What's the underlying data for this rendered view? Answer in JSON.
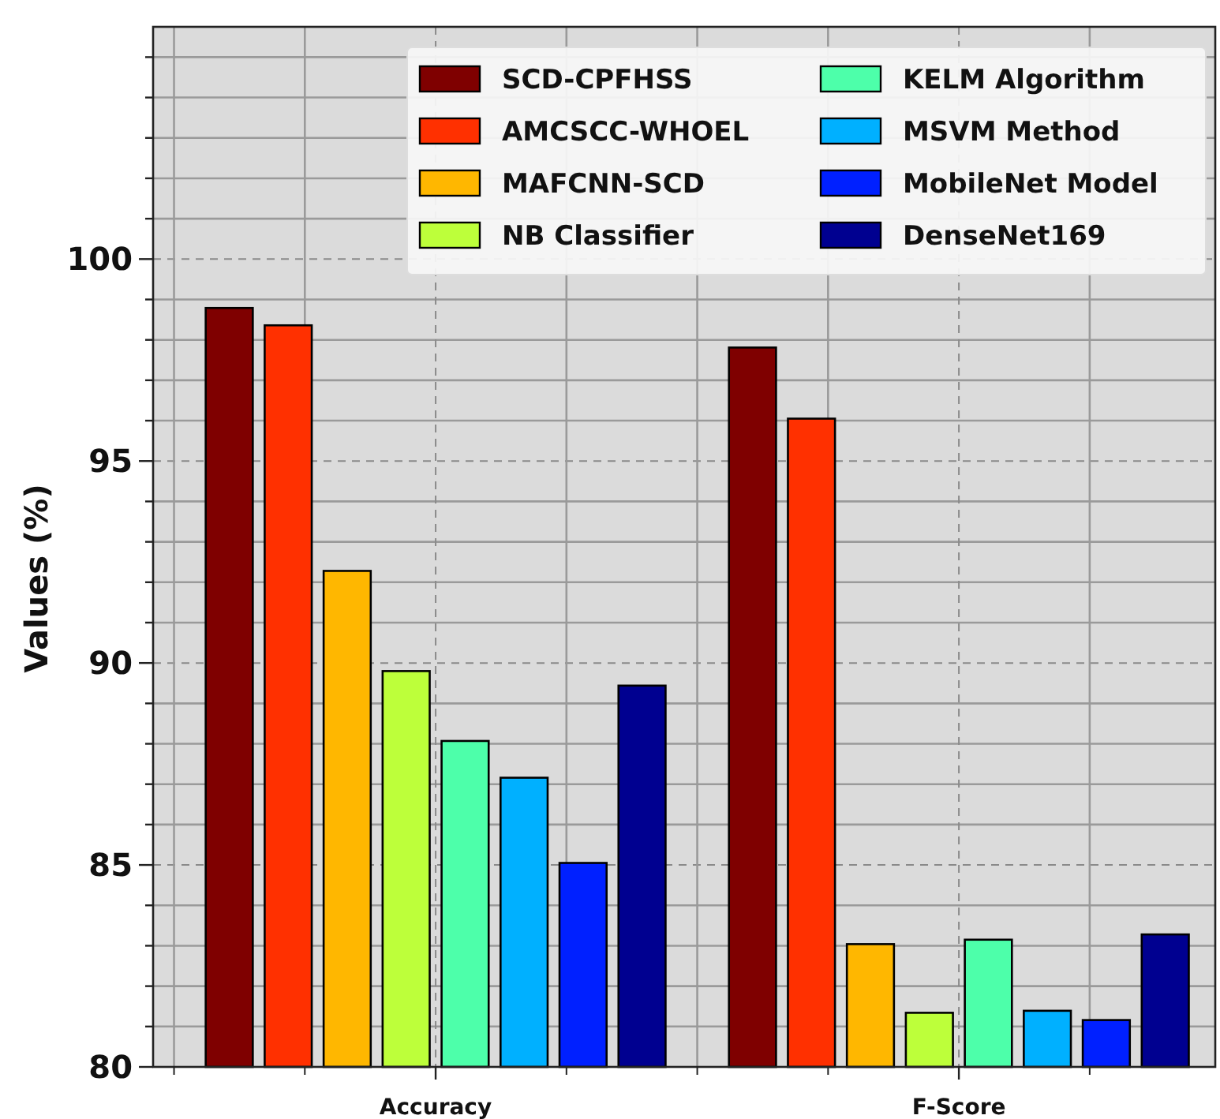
{
  "chart_data": {
    "type": "bar",
    "ylabel": "Values (%)",
    "categories": [
      "Accuracy",
      "F-Score"
    ],
    "series": [
      {
        "name": "SCD-CPFHSS",
        "color": "#7f0000",
        "values": [
          98.79,
          97.81
        ]
      },
      {
        "name": "AMCSCC-WHOEL",
        "color": "#ff3000",
        "values": [
          98.36,
          96.05
        ]
      },
      {
        "name": "MAFCNN-SCD",
        "color": "#ffb700",
        "values": [
          92.28,
          83.04
        ]
      },
      {
        "name": "NB Classifier",
        "color": "#bdff3a",
        "values": [
          89.8,
          81.34
        ]
      },
      {
        "name": "KELM Algorithm",
        "color": "#4dffaa",
        "values": [
          88.07,
          83.15
        ]
      },
      {
        "name": "MSVM Method",
        "color": "#00b0ff",
        "values": [
          87.16,
          81.39
        ]
      },
      {
        "name": "MobileNet Model",
        "color": "#0020ff",
        "values": [
          85.05,
          81.16
        ]
      },
      {
        "name": "DenseNet169",
        "color": "#000090",
        "values": [
          89.44,
          83.28
        ]
      }
    ],
    "ylim": [
      80,
      105.75
    ],
    "yticks": [
      80,
      {
        "value": 81,
        "label": null
      },
      {
        "value": 82,
        "label": null
      },
      {
        "value": 83,
        "label": null
      },
      {
        "value": 84,
        "label": null
      },
      85,
      {
        "value": 86,
        "label": null
      },
      {
        "value": 87,
        "label": null
      },
      {
        "value": 88,
        "label": null
      },
      {
        "value": 89,
        "label": null
      },
      90,
      {
        "value": 91,
        "label": null
      },
      {
        "value": 92,
        "label": null
      },
      {
        "value": 93,
        "label": null
      },
      {
        "value": 94,
        "label": null
      },
      95,
      {
        "value": 96,
        "label": null
      },
      {
        "value": 97,
        "label": null
      },
      {
        "value": 98,
        "label": null
      },
      {
        "value": 99,
        "label": null
      },
      100,
      {
        "value": 101,
        "label": null
      },
      {
        "value": 102,
        "label": null
      },
      {
        "value": 103,
        "label": null
      },
      {
        "value": 104,
        "label": null
      },
      {
        "value": 105,
        "label": null
      }
    ],
    "grid": true,
    "legend": "top right"
  }
}
